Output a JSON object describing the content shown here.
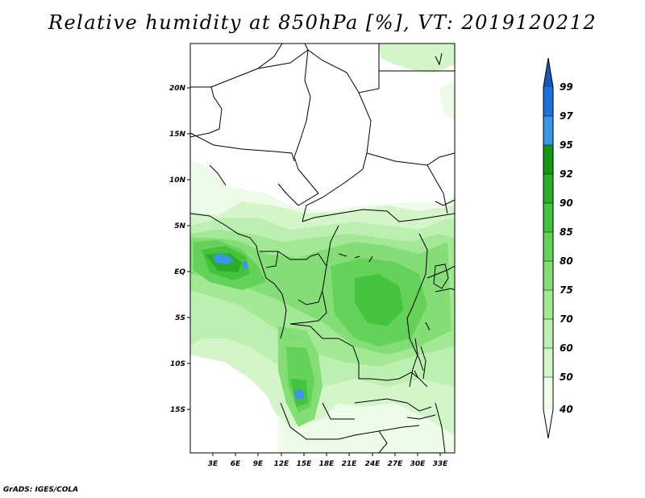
{
  "title": "Relative humidity at 850hPa [%], VT: 2019120212",
  "footer": "GrADS: IGES/COLA",
  "lat_labels": [
    "20N",
    "15N",
    "10N",
    "5N",
    "EQ",
    "5S",
    "10S",
    "15S"
  ],
  "lon_labels": [
    "3E",
    "6E",
    "9E",
    "12E",
    "15E",
    "18E",
    "21E",
    "24E",
    "27E",
    "30E",
    "33E"
  ],
  "colorbar": {
    "levels": [
      "40",
      "50",
      "60",
      "70",
      "75",
      "80",
      "85",
      "90",
      "92",
      "95",
      "97",
      "99"
    ],
    "colors": [
      "#ffffff",
      "#edfbe8",
      "#d4f5c9",
      "#bdefb0",
      "#a3e895",
      "#84dd77",
      "#64d259",
      "#44c33f",
      "#2aae2a",
      "#159515",
      "#3c96e6",
      "#1e70d6",
      "#1a56b8"
    ]
  }
}
